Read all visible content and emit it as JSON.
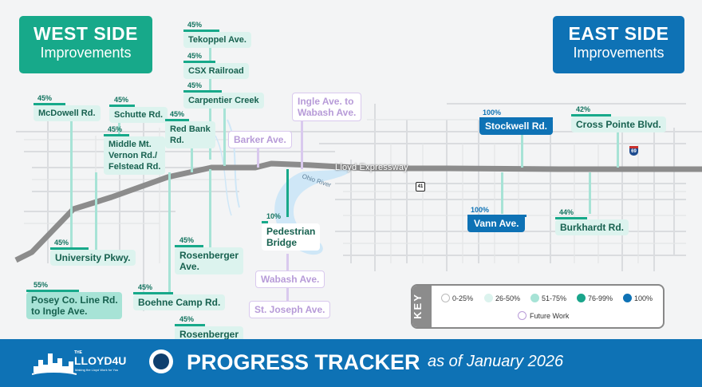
{
  "header_west": {
    "title": "WEST SIDE",
    "subtitle": "Improvements"
  },
  "header_east": {
    "title": "EAST SIDE",
    "subtitle": "Improvements"
  },
  "map_labels": {
    "expressway": "Lloyd Expressway",
    "river": "Ohio River",
    "interstate_shield": "69",
    "us_shield": "41"
  },
  "projects": {
    "tekoppel": {
      "name": "Tekoppel Ave.",
      "percent_label": "45%",
      "percent": 45
    },
    "csx": {
      "name": "CSX Railroad",
      "percent_label": "45%",
      "percent": 45
    },
    "carpentier": {
      "name": "Carpentier Creek",
      "percent_label": "45%",
      "percent": 45
    },
    "mcdowell": {
      "name": "McDowell Rd.",
      "percent_label": "45%",
      "percent": 45
    },
    "schutte": {
      "name": "Schutte Rd.",
      "percent_label": "45%",
      "percent": 45
    },
    "middlemt": {
      "name_line1": "Middle Mt.",
      "name_line2": "Vernon Rd./",
      "name_line3": "Felstead Rd.",
      "percent_label": "45%",
      "percent": 45
    },
    "redbank": {
      "name_line1": "Red Bank",
      "name_line2": "Rd.",
      "percent_label": "45%",
      "percent": 45
    },
    "barker": {
      "name": "Barker Ave.",
      "status": "Future Work"
    },
    "ingle": {
      "name_line1": "Ingle Ave. to",
      "name_line2": "Wabash Ave.",
      "status": "Future Work"
    },
    "stockwell": {
      "name": "Stockwell Rd.",
      "percent_label": "100%",
      "percent": 100
    },
    "crosspointe": {
      "name": "Cross Pointe Blvd.",
      "percent_label": "42%",
      "percent": 42
    },
    "vann": {
      "name": "Vann Ave.",
      "percent_label": "100%",
      "percent": 100
    },
    "burkhardt": {
      "name": "Burkhardt Rd.",
      "percent_label": "44%",
      "percent": 44
    },
    "pedestrian": {
      "name_line1": "Pedestrian",
      "name_line2": "Bridge",
      "percent_label": "10%",
      "percent": 10
    },
    "university": {
      "name": "University Pkwy.",
      "percent_label": "45%",
      "percent": 45
    },
    "rosenberger": {
      "name_line1": "Rosenberger",
      "name_line2": "Ave.",
      "percent_label": "45%",
      "percent": 45
    },
    "wabash": {
      "name": "Wabash Ave.",
      "status": "Future Work"
    },
    "stjoseph": {
      "name": "St. Joseph Ave.",
      "status": "Future Work"
    },
    "posey": {
      "name_line1": "Posey Co. Line Rd.",
      "name_line2": "to Ingle Ave.",
      "percent_label": "55%",
      "percent": 55
    },
    "boehne": {
      "name": "Boehne Camp Rd.",
      "percent_label": "45%",
      "percent": 45
    },
    "rosenberger2": {
      "name": "Rosenberger",
      "percent_label": "45%",
      "percent": 45
    }
  },
  "key": {
    "title": "KEY",
    "items": [
      {
        "label": "0-25%",
        "color": "#ffffff"
      },
      {
        "label": "26-50%",
        "color": "#dcf3ee"
      },
      {
        "label": "51-75%",
        "color": "#a7e3d6"
      },
      {
        "label": "76-99%",
        "color": "#1aa58b"
      },
      {
        "label": "100%",
        "color": "#0e72b5"
      }
    ],
    "future": {
      "label": "Future Work",
      "color": "#b99cd8"
    }
  },
  "footer": {
    "logo_the": "THE",
    "logo_main": "LLOYD4U",
    "logo_tagline": "Making the Lloyd Work for You",
    "title": "PROGRESS TRACKER",
    "date": "as of January 2026"
  },
  "colors": {
    "west_header": "#17a98a",
    "east_header": "#0e72b5",
    "footer_bg": "#0e72b5",
    "expressway": "#8c8c8c"
  }
}
